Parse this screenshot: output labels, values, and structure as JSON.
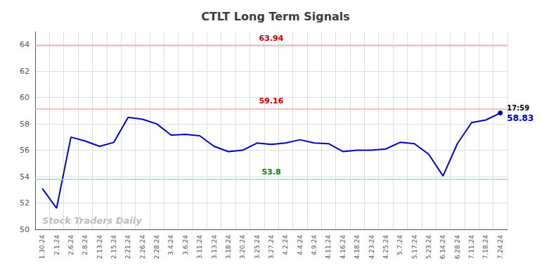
{
  "chart_data": {
    "type": "line",
    "title": "CTLT Long Term Signals",
    "watermark": "Stock Traders Daily",
    "categories": [
      "1.30.24",
      "2.1.24",
      "2.6.24",
      "2.8.24",
      "2.13.24",
      "2.15.24",
      "2.21.24",
      "2.26.24",
      "2.28.24",
      "3.4.24",
      "3.6.24",
      "3.11.24",
      "3.13.24",
      "3.18.24",
      "3.20.24",
      "3.25.24",
      "3.27.24",
      "4.2.24",
      "4.4.24",
      "4.9.24",
      "4.11.24",
      "4.16.24",
      "4.18.24",
      "4.23.24",
      "4.25.24",
      "5.7.24",
      "5.17.24",
      "5.23.24",
      "6.14.24",
      "6.28.24",
      "7.11.24",
      "7.18.24",
      "7.24.24"
    ],
    "values": [
      53.1,
      51.6,
      57.0,
      56.7,
      56.3,
      56.6,
      58.5,
      58.35,
      58.0,
      57.15,
      57.2,
      57.1,
      56.3,
      55.9,
      56.0,
      56.55,
      56.45,
      56.55,
      56.8,
      56.55,
      56.5,
      55.9,
      56.0,
      56.0,
      56.1,
      56.6,
      56.5,
      55.7,
      54.05,
      56.5,
      58.1,
      58.3,
      58.83
    ],
    "color": "#0000cc",
    "reference_lines": [
      {
        "value": 63.94,
        "label": "63.94",
        "color": "#ffaaaa",
        "label_color": "#cc0000"
      },
      {
        "value": 59.16,
        "label": "59.16",
        "color": "#ffaaaa",
        "label_color": "#cc0000"
      },
      {
        "value": 53.8,
        "label": "53.8",
        "color": "#aaddaa",
        "label_color": "#008800"
      }
    ],
    "end_annotations": {
      "time": "17:59",
      "price": "58.83"
    },
    "ylim": [
      50,
      65
    ],
    "yticks": [
      50,
      52,
      54,
      56,
      58,
      60,
      62,
      64
    ],
    "grid": true
  }
}
